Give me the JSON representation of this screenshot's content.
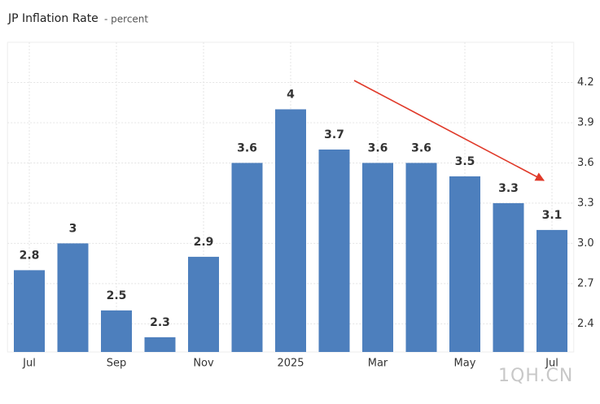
{
  "chart_data": {
    "type": "bar",
    "title": "JP Inflation Rate",
    "subtitle": "- percent",
    "categories": [
      "Jul",
      null,
      "Sep",
      null,
      "Nov",
      null,
      "2025",
      null,
      "Mar",
      null,
      "May",
      null,
      "Jul"
    ],
    "values": [
      2.8,
      3,
      2.5,
      2.3,
      2.9,
      3.6,
      4,
      3.7,
      3.6,
      3.6,
      3.5,
      3.3,
      3.1
    ],
    "color": "#4d7fbd",
    "ylim": [
      2.19,
      4.5
    ],
    "yticks": [
      2.4,
      2.7,
      {
        "value": 3,
        "label": "3.0"
      },
      3.3,
      3.6,
      3.9,
      4.2
    ],
    "grid": true,
    "watermark": "1QH.CN"
  }
}
